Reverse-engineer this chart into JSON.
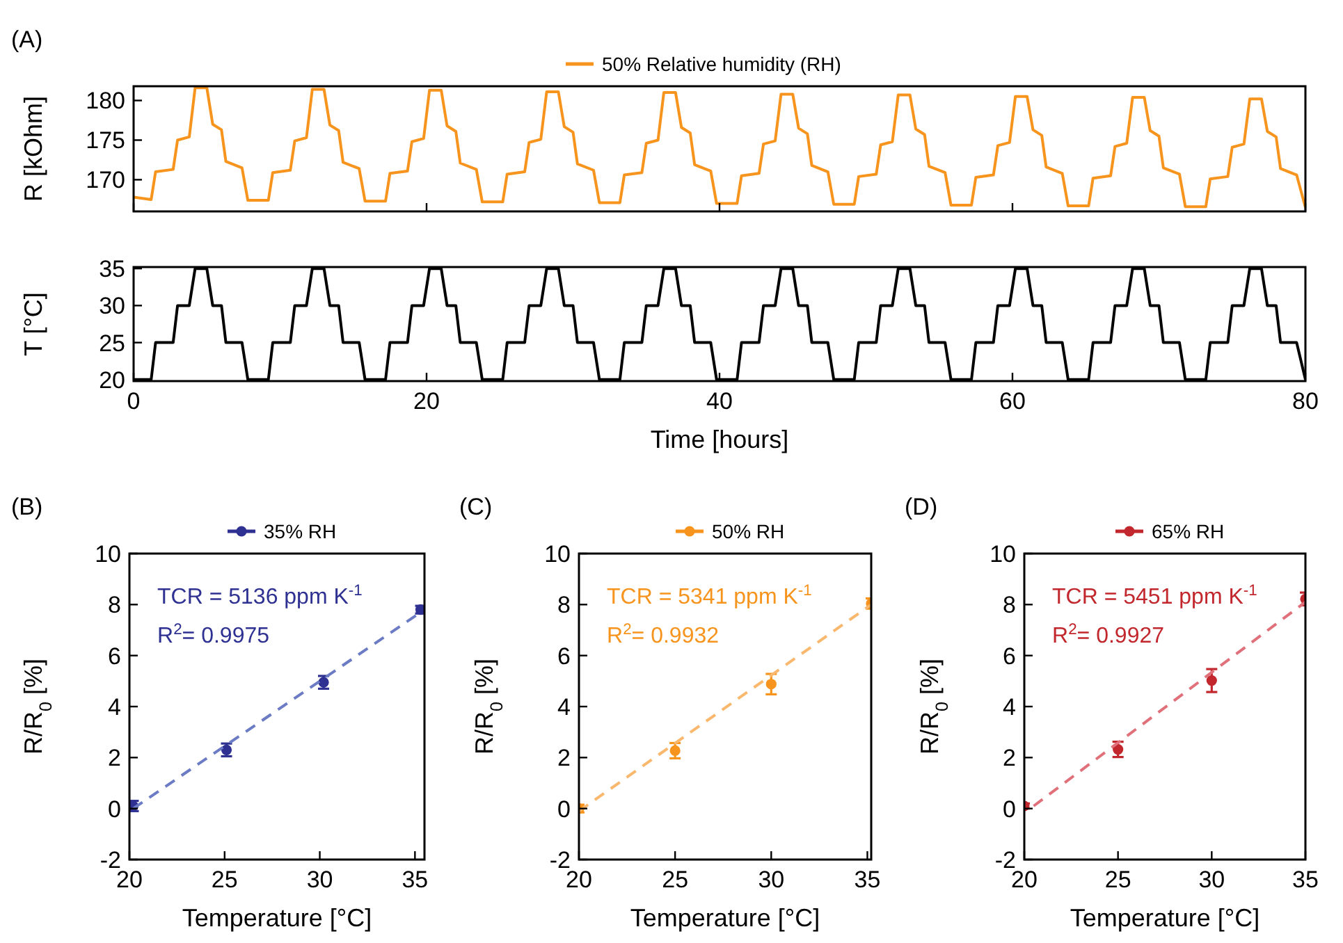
{
  "chart_data": [
    {
      "type": "line",
      "title": "(A)",
      "ylabel": "R [kOhm]",
      "legend": "top",
      "tick_labels": "y",
      "xlim": [
        0,
        80
      ],
      "xticks": [
        0,
        20,
        40,
        60,
        80
      ],
      "ylim": [
        166,
        181.8
      ],
      "yticks": [
        170,
        175,
        180
      ],
      "x": [
        0,
        1.2,
        1.5,
        2.7,
        3,
        3.8,
        4.2,
        5,
        5.4,
        6,
        6.3,
        7.4,
        7.8,
        9.2,
        9.5,
        10.7,
        11,
        11.8,
        12.2,
        13,
        13.4,
        14,
        14.3,
        15.4,
        15.8,
        17.2,
        17.5,
        18.7,
        19,
        19.8,
        20.2,
        21,
        21.4,
        22,
        22.3,
        23.4,
        23.8,
        25.2,
        25.5,
        26.7,
        27,
        27.8,
        28.2,
        29,
        29.4,
        30,
        30.3,
        31.4,
        31.8,
        33.2,
        33.5,
        34.7,
        35,
        35.8,
        36.2,
        37,
        37.4,
        38,
        38.3,
        39.4,
        39.8,
        41.2,
        41.5,
        42.7,
        43,
        43.8,
        44.2,
        45,
        45.4,
        46,
        46.3,
        47.4,
        47.8,
        49.2,
        49.5,
        50.7,
        51,
        51.8,
        52.2,
        53,
        53.4,
        54,
        54.3,
        55.4,
        55.8,
        57.2,
        57.5,
        58.7,
        59,
        59.8,
        60.2,
        61,
        61.4,
        62,
        62.3,
        63.4,
        63.8,
        65.2,
        65.5,
        66.7,
        67,
        67.8,
        68.2,
        69,
        69.4,
        70,
        70.3,
        71.4,
        71.8,
        73.2,
        73.5,
        74.7,
        75,
        75.8,
        76.2,
        77,
        77.4,
        78,
        78.3,
        79.4,
        80
      ],
      "series": [
        {
          "name": "50% Relative humidity (RH)",
          "color": "#f7941d",
          "values": [
            167.8,
            167.5,
            171.0,
            171.3,
            175.0,
            175.4,
            181.6,
            181.6,
            177.0,
            176.3,
            172.3,
            171.5,
            167.4,
            167.4,
            170.9,
            171.2,
            174.9,
            175.3,
            181.4,
            181.4,
            176.9,
            176.2,
            172.2,
            171.4,
            167.3,
            167.3,
            170.8,
            171.1,
            174.8,
            175.2,
            181.3,
            181.3,
            176.8,
            176.1,
            172.1,
            171.3,
            167.2,
            167.2,
            170.7,
            171.0,
            174.7,
            175.1,
            181.1,
            181.1,
            176.7,
            176.0,
            172.0,
            171.2,
            167.1,
            167.1,
            170.6,
            170.9,
            174.6,
            175.0,
            181.0,
            181.0,
            176.6,
            175.9,
            171.9,
            171.1,
            167.0,
            167.0,
            170.5,
            170.8,
            174.5,
            174.9,
            180.8,
            180.8,
            176.5,
            175.8,
            171.8,
            171.0,
            166.9,
            166.9,
            170.4,
            170.7,
            174.4,
            174.8,
            180.7,
            180.7,
            176.4,
            175.7,
            171.7,
            170.9,
            166.8,
            166.8,
            170.3,
            170.6,
            174.3,
            174.7,
            180.5,
            180.5,
            176.3,
            175.6,
            171.6,
            170.8,
            166.7,
            166.7,
            170.2,
            170.5,
            174.2,
            174.6,
            180.4,
            180.4,
            176.2,
            175.5,
            171.5,
            170.7,
            166.6,
            166.6,
            170.1,
            170.4,
            174.1,
            174.5,
            180.2,
            180.2,
            176.1,
            175.4,
            171.4,
            170.6,
            166.5
          ]
        }
      ]
    },
    {
      "type": "line",
      "xlabel": "Time [hours]",
      "ylabel": "T [°C]",
      "xlim": [
        0,
        80
      ],
      "xticks": [
        0,
        20,
        40,
        60,
        80
      ],
      "ylim": [
        19.8,
        35.2
      ],
      "yticks": [
        20,
        25,
        30,
        35
      ],
      "x": [
        0,
        1.2,
        1.5,
        2.7,
        3,
        3.8,
        4.2,
        5,
        5.4,
        6,
        6.3,
        7.4,
        7.8,
        9.2,
        9.5,
        10.7,
        11,
        11.8,
        12.2,
        13,
        13.4,
        14,
        14.3,
        15.4,
        15.8,
        17.2,
        17.5,
        18.7,
        19,
        19.8,
        20.2,
        21,
        21.4,
        22,
        22.3,
        23.4,
        23.8,
        25.2,
        25.5,
        26.7,
        27,
        27.8,
        28.2,
        29,
        29.4,
        30,
        30.3,
        31.4,
        31.8,
        33.2,
        33.5,
        34.7,
        35,
        35.8,
        36.2,
        37,
        37.4,
        38,
        38.3,
        39.4,
        39.8,
        41.2,
        41.5,
        42.7,
        43,
        43.8,
        44.2,
        45,
        45.4,
        46,
        46.3,
        47.4,
        47.8,
        49.2,
        49.5,
        50.7,
        51,
        51.8,
        52.2,
        53,
        53.4,
        54,
        54.3,
        55.4,
        55.8,
        57.2,
        57.5,
        58.7,
        59,
        59.8,
        60.2,
        61,
        61.4,
        62,
        62.3,
        63.4,
        63.8,
        65.2,
        65.5,
        66.7,
        67,
        67.8,
        68.2,
        69,
        69.4,
        70,
        70.3,
        71.4,
        71.8,
        73.2,
        73.5,
        74.7,
        75,
        75.8,
        76.2,
        77,
        77.4,
        78,
        78.3,
        79.4,
        80
      ],
      "series": [
        {
          "color": "#000000",
          "values": [
            20,
            20,
            25,
            25,
            30,
            30,
            35,
            35,
            30,
            30,
            25,
            25,
            20,
            20,
            25,
            25,
            30,
            30,
            35,
            35,
            30,
            30,
            25,
            25,
            20,
            20,
            25,
            25,
            30,
            30,
            35,
            35,
            30,
            30,
            25,
            25,
            20,
            20,
            25,
            25,
            30,
            30,
            35,
            35,
            30,
            30,
            25,
            25,
            20,
            20,
            25,
            25,
            30,
            30,
            35,
            35,
            30,
            30,
            25,
            25,
            20,
            20,
            25,
            25,
            30,
            30,
            35,
            35,
            30,
            30,
            25,
            25,
            20,
            20,
            25,
            25,
            30,
            30,
            35,
            35,
            30,
            30,
            25,
            25,
            20,
            20,
            25,
            25,
            30,
            30,
            35,
            35,
            30,
            30,
            25,
            25,
            20,
            20,
            25,
            25,
            30,
            30,
            35,
            35,
            30,
            30,
            25,
            25,
            20,
            20,
            25,
            25,
            30,
            30,
            35,
            35,
            30,
            30,
            25,
            25,
            20
          ]
        }
      ]
    },
    {
      "type": "scatter",
      "title": "(B)",
      "xlabel": "Temperature [°C]",
      "ylabel": "R/R$_{0}$ [%]",
      "legend": "top",
      "xlim": [
        20,
        35.5
      ],
      "xticks": [
        20,
        25,
        30,
        35
      ],
      "ylim": [
        -2,
        10
      ],
      "yticks": [
        -2,
        0,
        2,
        4,
        6,
        8,
        10
      ],
      "annotations": [
        "TCR = 5136 ppm K$^{-1}$",
        "R$^{2}$= 0.9975"
      ],
      "series": [
        {
          "name": "35% RH",
          "color": "#2e3192",
          "marker": "circle",
          "x": [
            20.2,
            25.1,
            30.2,
            35.3
          ],
          "values": [
            0.1,
            2.3,
            4.95,
            7.8
          ],
          "errors": [
            0.2,
            0.25,
            0.25,
            0.15
          ]
        },
        {
          "type": "line",
          "line_style": "dashed",
          "color": "#6b7bc4",
          "x": [
            20.2,
            35.3
          ],
          "values": [
            0,
            7.7
          ]
        }
      ]
    },
    {
      "type": "scatter",
      "title": "(C)",
      "xlabel": "Temperature [°C]",
      "ylabel": "R/R$_{0}$ [%]",
      "legend": "top",
      "xlim": [
        20,
        35.2
      ],
      "xticks": [
        20,
        25,
        30,
        35
      ],
      "ylim": [
        -2,
        10
      ],
      "yticks": [
        -2,
        0,
        2,
        4,
        6,
        8,
        10
      ],
      "annotations": [
        "TCR = 5341 ppm K$^{-1}$",
        "R$^{2}$= 0.9932"
      ],
      "series": [
        {
          "name": "50% RH",
          "color": "#f7941d",
          "marker": "circle",
          "x": [
            20,
            25,
            30,
            35.2
          ],
          "values": [
            0,
            2.27,
            4.88,
            8.04
          ],
          "errors": [
            0.15,
            0.3,
            0.4,
            0.2
          ]
        },
        {
          "type": "line",
          "line_style": "dashed",
          "color": "#f9b86e",
          "x": [
            20,
            35.2
          ],
          "values": [
            -0.1,
            8
          ]
        }
      ]
    },
    {
      "type": "scatter",
      "title": "(D)",
      "xlabel": "Temperature [°C]",
      "ylabel": "R/R$_{0}$ [%]",
      "legend": "top",
      "xlim": [
        20,
        35
      ],
      "xticks": [
        20,
        25,
        30,
        35
      ],
      "ylim": [
        -2,
        10
      ],
      "yticks": [
        -2,
        0,
        2,
        4,
        6,
        8,
        10
      ],
      "annotations": [
        "TCR = 5451 ppm K$^{-1}$",
        "R$^{2}$= 0.9927"
      ],
      "series": [
        {
          "name": "65% RH",
          "color": "#c1272d",
          "marker": "circle",
          "x": [
            20,
            25,
            30,
            35
          ],
          "values": [
            0.1,
            2.32,
            5.02,
            8.22
          ],
          "errors": [
            0.1,
            0.3,
            0.45,
            0.25
          ]
        },
        {
          "type": "line",
          "line_style": "dashed",
          "color": "#e0707a",
          "x": [
            20.5,
            35
          ],
          "values": [
            0.1,
            8.1
          ]
        }
      ]
    }
  ]
}
